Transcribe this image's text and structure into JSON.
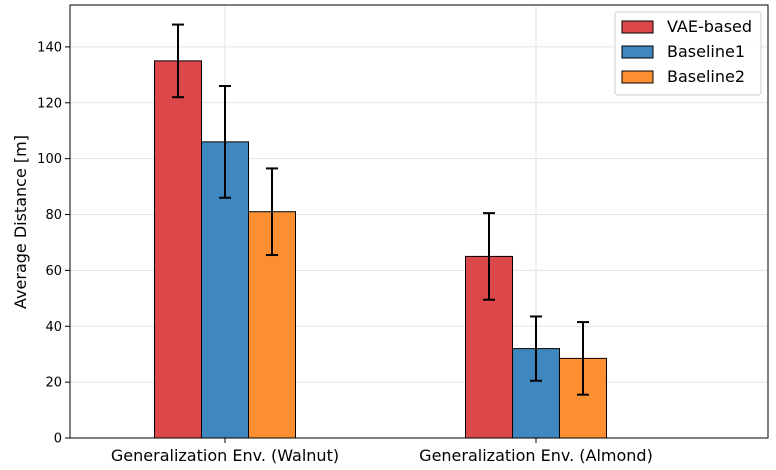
{
  "chart_data": {
    "type": "bar",
    "title": "",
    "xlabel": "",
    "ylabel": "Average Distance [m]",
    "categories": [
      "Generalization Env. (Walnut)",
      "Generalization Env. (Almond)"
    ],
    "series": [
      {
        "name": "VAE-based",
        "color": "#dc474a",
        "values": [
          135,
          65
        ],
        "errors": [
          13,
          15.5
        ]
      },
      {
        "name": "Baseline1",
        "color": "#3f87bf",
        "values": [
          106,
          32
        ],
        "errors": [
          20,
          11.5
        ]
      },
      {
        "name": "Baseline2",
        "color": "#fd8f33",
        "values": [
          81,
          28.5
        ],
        "errors": [
          15.5,
          13
        ]
      }
    ],
    "ylim": [
      0,
      155
    ],
    "yticks": [
      0,
      20,
      40,
      60,
      80,
      100,
      120,
      140
    ],
    "grid": true,
    "legend": "top-right"
  }
}
